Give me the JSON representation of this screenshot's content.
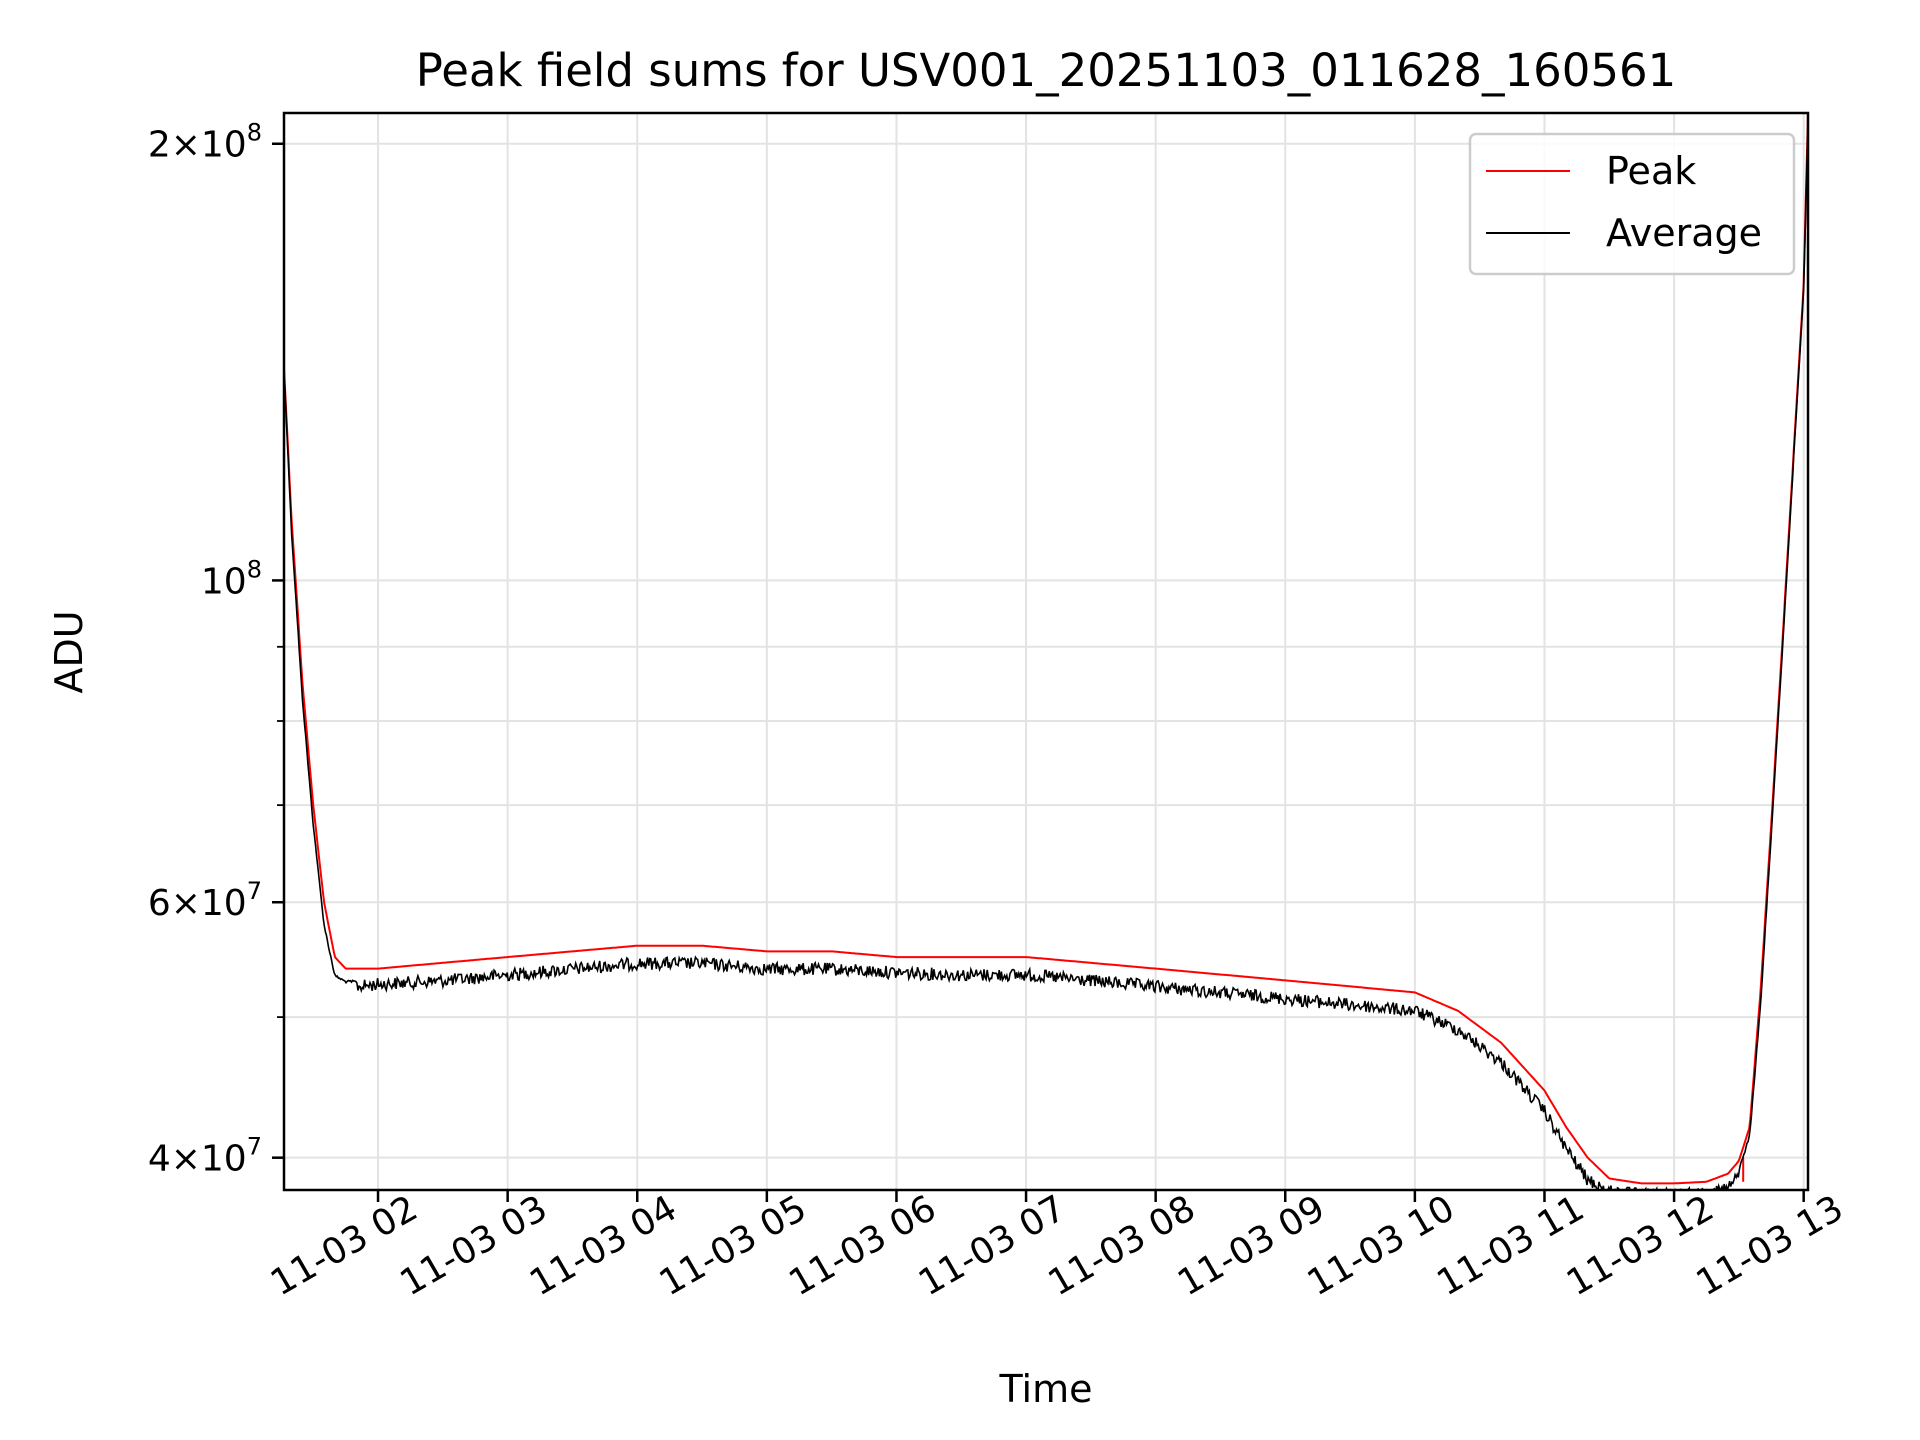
{
  "chart_data": {
    "type": "line",
    "title": "Peak field sums for USV001_20251103_011628_160561",
    "xlabel": "Time",
    "ylabel": "ADU",
    "xlim": [
      "2025-11-03 01:16:28",
      "2025-11-03 13:02:00"
    ],
    "ylim": [
      38000000,
      210000000
    ],
    "yscale": "log",
    "grid": true,
    "legend_position": "top-right",
    "x_ticks": [
      {
        "value": "2025-11-03 02:00",
        "label": "11-03 02"
      },
      {
        "value": "2025-11-03 03:00",
        "label": "11-03 03"
      },
      {
        "value": "2025-11-03 04:00",
        "label": "11-03 04"
      },
      {
        "value": "2025-11-03 05:00",
        "label": "11-03 05"
      },
      {
        "value": "2025-11-03 06:00",
        "label": "11-03 06"
      },
      {
        "value": "2025-11-03 07:00",
        "label": "11-03 07"
      },
      {
        "value": "2025-11-03 08:00",
        "label": "11-03 08"
      },
      {
        "value": "2025-11-03 09:00",
        "label": "11-03 09"
      },
      {
        "value": "2025-11-03 10:00",
        "label": "11-03 10"
      },
      {
        "value": "2025-11-03 11:00",
        "label": "11-03 11"
      },
      {
        "value": "2025-11-03 12:00",
        "label": "11-03 12"
      },
      {
        "value": "2025-11-03 13:00",
        "label": "11-03 13"
      }
    ],
    "y_ticks": [
      {
        "value": 40000000,
        "mantissa": "4",
        "exponent": "7"
      },
      {
        "value": 60000000,
        "mantissa": "6",
        "exponent": "7"
      },
      {
        "value": 100000000,
        "mantissa": "",
        "exponent": "8"
      },
      {
        "value": 200000000,
        "mantissa": "2",
        "exponent": "8"
      }
    ],
    "y_minor_ticks": [
      50000000,
      70000000,
      80000000,
      90000000
    ],
    "series": [
      {
        "name": "Peak",
        "color": "#ff0000",
        "x": [
          "2025-11-03 01:16:28",
          "2025-11-03 01:20",
          "2025-11-03 01:25",
          "2025-11-03 01:30",
          "2025-11-03 01:35",
          "2025-11-03 01:40",
          "2025-11-03 01:45",
          "2025-11-03 01:50",
          "2025-11-03 02:00",
          "2025-11-03 02:30",
          "2025-11-03 03:00",
          "2025-11-03 03:30",
          "2025-11-03 04:00",
          "2025-11-03 04:30",
          "2025-11-03 05:00",
          "2025-11-03 05:30",
          "2025-11-03 06:00",
          "2025-11-03 06:30",
          "2025-11-03 07:00",
          "2025-11-03 07:30",
          "2025-11-03 08:00",
          "2025-11-03 08:30",
          "2025-11-03 09:00",
          "2025-11-03 09:30",
          "2025-11-03 10:00",
          "2025-11-03 10:20",
          "2025-11-03 10:40",
          "2025-11-03 11:00",
          "2025-11-03 11:10",
          "2025-11-03 11:20",
          "2025-11-03 11:30",
          "2025-11-03 11:45",
          "2025-11-03 12:00",
          "2025-11-03 12:15",
          "2025-11-03 12:25",
          "2025-11-03 12:30",
          "2025-11-03 12:35",
          "2025-11-03 12:40",
          "2025-11-03 12:45",
          "2025-11-03 12:50",
          "2025-11-03 12:55",
          "2025-11-03 13:00",
          "2025-11-03 13:02"
        ],
        "y": [
          140000000,
          110000000,
          85000000,
          70000000,
          60000000,
          55000000,
          54000000,
          54000000,
          54000000,
          54500000,
          55000000,
          55500000,
          56000000,
          56000000,
          55500000,
          55500000,
          55000000,
          55000000,
          55000000,
          54500000,
          54000000,
          53500000,
          53000000,
          52500000,
          52000000,
          50500000,
          48000000,
          44500000,
          42000000,
          40000000,
          38700000,
          38400000,
          38400000,
          38500000,
          39000000,
          39800000,
          42000000,
          52000000,
          68000000,
          90000000,
          120000000,
          160000000,
          210000000
        ],
        "spikes": [
          {
            "x": "2025-11-03 12:32",
            "y_low": 38500000,
            "y_high": 40000000
          }
        ]
      },
      {
        "name": "Average",
        "color": "#000000",
        "x": [
          "2025-11-03 01:16:28",
          "2025-11-03 01:20",
          "2025-11-03 01:25",
          "2025-11-03 01:30",
          "2025-11-03 01:35",
          "2025-11-03 01:40",
          "2025-11-03 01:45",
          "2025-11-03 01:50",
          "2025-11-03 02:00",
          "2025-11-03 02:30",
          "2025-11-03 03:00",
          "2025-11-03 03:30",
          "2025-11-03 04:00",
          "2025-11-03 04:30",
          "2025-11-03 05:00",
          "2025-11-03 05:30",
          "2025-11-03 06:00",
          "2025-11-03 06:30",
          "2025-11-03 07:00",
          "2025-11-03 07:30",
          "2025-11-03 08:00",
          "2025-11-03 08:30",
          "2025-11-03 09:00",
          "2025-11-03 09:30",
          "2025-11-03 10:00",
          "2025-11-03 10:20",
          "2025-11-03 10:40",
          "2025-11-03 11:00",
          "2025-11-03 11:10",
          "2025-11-03 11:20",
          "2025-11-03 11:30",
          "2025-11-03 11:45",
          "2025-11-03 12:00",
          "2025-11-03 12:15",
          "2025-11-03 12:25",
          "2025-11-03 12:30",
          "2025-11-03 12:35",
          "2025-11-03 12:40",
          "2025-11-03 12:45",
          "2025-11-03 12:50",
          "2025-11-03 12:55",
          "2025-11-03 13:00",
          "2025-11-03 13:02"
        ],
        "y": [
          140000000,
          108000000,
          83000000,
          68000000,
          58000000,
          53500000,
          53000000,
          53000000,
          53200000,
          53500000,
          54000000,
          54500000,
          55000000,
          55000000,
          54500000,
          54500000,
          54200000,
          54000000,
          54000000,
          53500000,
          53000000,
          52500000,
          52000000,
          51500000,
          51000000,
          49500000,
          47000000,
          43500000,
          41000000,
          39000000,
          38300000,
          38100000,
          38100000,
          38200000,
          38500000,
          39300000,
          41500000,
          51000000,
          67000000,
          89000000,
          119000000,
          159000000,
          208000000
        ],
        "noise_fraction": 0.02
      }
    ]
  }
}
